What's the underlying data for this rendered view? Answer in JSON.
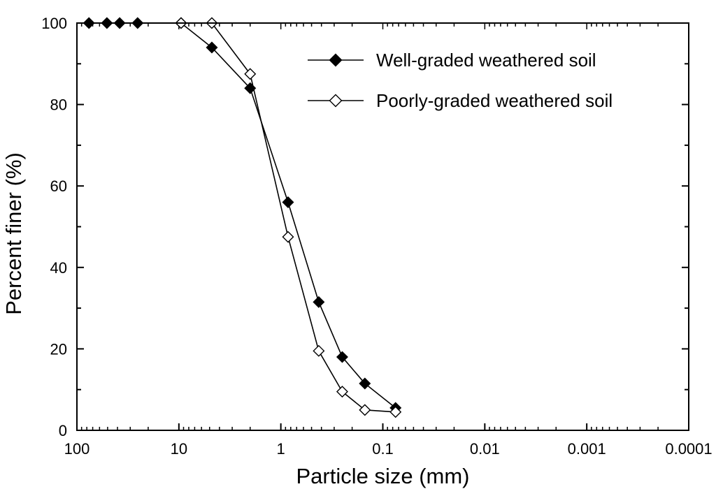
{
  "chart_data": {
    "type": "scatter",
    "title": "",
    "xlabel": "Particle size (mm)",
    "ylabel": "Percent finer (%)",
    "x_scale": "log",
    "x_reversed": true,
    "xlim": [
      100,
      0.0001
    ],
    "ylim": [
      0,
      100
    ],
    "x_ticks": [
      {
        "value": 100,
        "label": "100"
      },
      {
        "value": 10,
        "label": "10"
      },
      {
        "value": 1,
        "label": "1"
      },
      {
        "value": 0.1,
        "label": "0.1"
      },
      {
        "value": 0.01,
        "label": "0.01"
      },
      {
        "value": 0.001,
        "label": "0.001"
      },
      {
        "value": 0.0001,
        "label": "0.0001"
      }
    ],
    "y_ticks": [
      {
        "value": 0,
        "label": "0"
      },
      {
        "value": 20,
        "label": "20"
      },
      {
        "value": 40,
        "label": "40"
      },
      {
        "value": 60,
        "label": "60"
      },
      {
        "value": 80,
        "label": "80"
      },
      {
        "value": 100,
        "label": "100"
      }
    ],
    "legend_position": "top-right",
    "series": [
      {
        "name": "Well-graded weathered soil",
        "marker": "filled-diamond",
        "color": "#000000",
        "x": [
          76.2,
          50.8,
          38.1,
          25.4,
          9.52,
          4.75,
          2.0,
          0.85,
          0.425,
          0.25,
          0.15,
          0.075
        ],
        "y": [
          100,
          100,
          100,
          100,
          100,
          94,
          84,
          56,
          31.5,
          18,
          11.5,
          5.5
        ]
      },
      {
        "name": "Poorly-graded weathered soil",
        "marker": "open-diamond",
        "color": "#000000",
        "x": [
          9.52,
          4.75,
          2.0,
          0.85,
          0.425,
          0.25,
          0.15,
          0.075
        ],
        "y": [
          100,
          100,
          87.5,
          47.5,
          19.5,
          9.5,
          5,
          4.5
        ]
      }
    ]
  }
}
